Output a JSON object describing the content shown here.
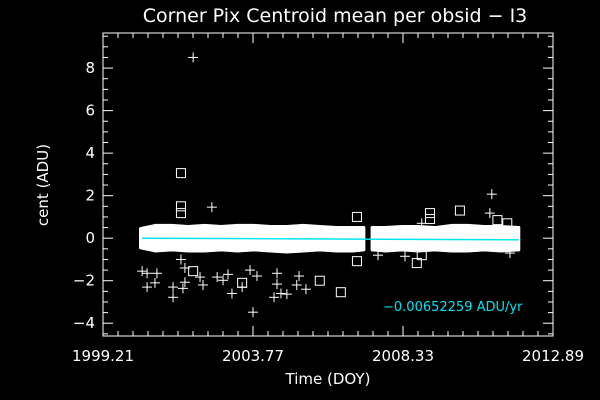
{
  "chart_data": {
    "type": "scatter",
    "title": "Corner Pix Centroid mean per obsid − I3",
    "xlabel": "Time (DOY)",
    "ylabel": "cent (ADU)",
    "xlim": [
      1999.21,
      2012.89
    ],
    "ylim": [
      -4.6,
      9.65
    ],
    "x_ticks": [
      "1999.21",
      "2003.77",
      "2008.33",
      "2012.89"
    ],
    "x_tick_values": [
      1999.21,
      2003.77,
      2008.33,
      2012.89
    ],
    "y_ticks": [
      -4,
      -2,
      0,
      2,
      4,
      6,
      8
    ],
    "grid": false,
    "colors": {
      "background": "#000000",
      "foreground": "#ffffff",
      "fit": "#00e5ee"
    },
    "fit_label": "−0.00652259 ADU/yr",
    "fit": {
      "slope_per_yr": -0.00652259,
      "x": [
        2000.4,
        2011.85
      ],
      "y": [
        0.0,
        -0.075
      ]
    },
    "dense_band": {
      "segments": [
        {
          "x": [
            2000.35,
            2000.8,
            2001.3,
            2001.8,
            2002.3,
            2002.8,
            2003.3,
            2003.8,
            2004.3,
            2004.8,
            2005.3,
            2005.8,
            2006.3,
            2006.8,
            2007.14
          ],
          "upper": [
            0.45,
            0.6,
            0.6,
            0.55,
            0.6,
            0.55,
            0.6,
            0.6,
            0.55,
            0.55,
            0.6,
            0.55,
            0.5,
            0.5,
            0.5
          ],
          "lower": [
            -0.45,
            -0.6,
            -0.55,
            -0.6,
            -0.6,
            -0.55,
            -0.6,
            -0.55,
            -0.6,
            -0.65,
            -0.6,
            -0.55,
            -0.6,
            -0.6,
            -0.55
          ]
        },
        {
          "x": [
            2007.39,
            2007.8,
            2008.3,
            2008.8,
            2009.3,
            2009.8,
            2010.3,
            2010.8,
            2011.3,
            2011.85
          ],
          "upper": [
            0.5,
            0.5,
            0.55,
            0.55,
            0.5,
            0.6,
            0.6,
            0.55,
            0.55,
            0.5
          ],
          "lower": [
            -0.55,
            -0.6,
            -0.55,
            -0.6,
            -0.55,
            -0.6,
            -0.6,
            -0.55,
            -0.6,
            -0.55
          ]
        }
      ]
    },
    "series": [
      {
        "symbol": "plus",
        "x": [
          2001.95,
          2002.52,
          2011.03,
          2010.97,
          2008.9,
          2001.58,
          2001.7,
          2000.4,
          2000.55,
          2000.85,
          2000.55,
          2000.79,
          2001.34,
          2001.34,
          2001.64,
          2001.7,
          2002.16,
          2002.25,
          2002.68,
          2002.86,
          2003.01,
          2003.13,
          2003.44,
          2003.68,
          2003.89,
          2003.77,
          2004.5,
          2004.5,
          2004.41,
          2004.62,
          2004.8,
          2005.17,
          2005.1,
          2005.38,
          2011.58,
          2007.57,
          2008.39
        ],
        "y": [
          8.5,
          1.46,
          2.07,
          1.18,
          0.7,
          -1.0,
          -1.4,
          -1.55,
          -1.65,
          -1.65,
          -2.3,
          -2.1,
          -2.3,
          -2.78,
          -2.36,
          -2.07,
          -1.83,
          -2.2,
          -1.83,
          -1.98,
          -1.7,
          -2.6,
          -2.3,
          -1.5,
          -1.78,
          -3.48,
          -1.65,
          -2.16,
          -2.78,
          -2.6,
          -2.63,
          -1.78,
          -2.2,
          -2.4,
          -0.7,
          -0.8,
          -0.85
        ]
      },
      {
        "symbol": "square",
        "x": [
          2001.58,
          2001.58,
          2001.58,
          2006.93,
          2006.93,
          2001.95,
          2003.44,
          2005.8,
          2006.44,
          2008.75,
          2009.15,
          2009.15,
          2010.06,
          2011.2,
          2011.5,
          2008.9
        ],
        "y": [
          3.06,
          1.5,
          1.18,
          1.0,
          -1.08,
          -1.55,
          -2.1,
          -2.0,
          -2.54,
          -1.17,
          1.18,
          0.9,
          1.3,
          0.85,
          0.7,
          -0.8
        ]
      }
    ]
  }
}
